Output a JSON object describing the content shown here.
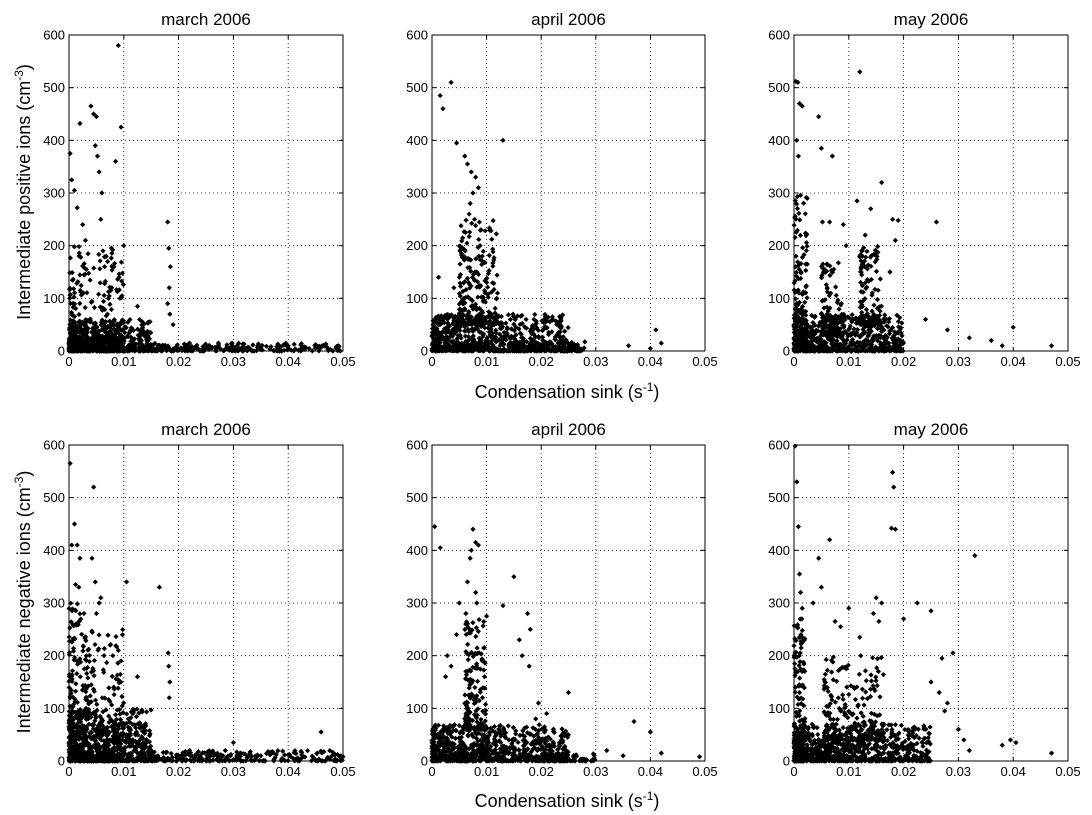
{
  "figure": {
    "xlabel_shared": "Condensation sink (s",
    "xlabel_unit_exp": "-1",
    "xlabel_close": ")",
    "ylabel_top": "Intermediate positive ions (cm",
    "ylabel_bottom": "Intermediate negative ions (cm",
    "ylabel_unit_exp": "-3",
    "ylabel_close": ")"
  },
  "chart_data": [
    {
      "type": "scatter",
      "title": "march 2006",
      "row": "positive",
      "xlim": [
        0,
        0.05
      ],
      "ylim": [
        0,
        600
      ],
      "grid": true,
      "xticks": [
        "0",
        "0.01",
        "0.02",
        "0.03",
        "0.04",
        "0.05"
      ],
      "yticks": [
        "0",
        "100",
        "200",
        "300",
        "400",
        "500",
        "600"
      ],
      "points": [
        [
          0.0002,
          375
        ],
        [
          0.0005,
          325
        ],
        [
          0.001,
          305
        ],
        [
          0.0015,
          272
        ],
        [
          0.002,
          432
        ],
        [
          0.0025,
          240
        ],
        [
          0.003,
          210
        ],
        [
          0.004,
          465
        ],
        [
          0.0045,
          450
        ],
        [
          0.005,
          445
        ],
        [
          0.0048,
          390
        ],
        [
          0.0052,
          370
        ],
        [
          0.0055,
          340
        ],
        [
          0.006,
          300
        ],
        [
          0.0058,
          250
        ],
        [
          0.0062,
          190
        ],
        [
          0.0065,
          160
        ],
        [
          0.0085,
          360
        ],
        [
          0.009,
          580
        ],
        [
          0.0095,
          425
        ],
        [
          0.01,
          200
        ],
        [
          0.0082,
          160
        ],
        [
          0.0078,
          120
        ],
        [
          0.0072,
          100
        ],
        [
          0.0125,
          85
        ],
        [
          0.018,
          245
        ],
        [
          0.0182,
          195
        ],
        [
          0.0185,
          160
        ],
        [
          0.0183,
          120
        ],
        [
          0.018,
          90
        ],
        [
          0.0184,
          70
        ],
        [
          0.019,
          50
        ],
        [
          0.022,
          15
        ],
        [
          0.025,
          12
        ],
        [
          0.03,
          8
        ],
        [
          0.035,
          6
        ],
        [
          0.04,
          5
        ],
        [
          0.045,
          12
        ],
        [
          0.047,
          8
        ],
        [
          0.049,
          5
        ]
      ],
      "clusters": [
        {
          "x": [
            0,
            0.015
          ],
          "y": [
            0,
            60
          ],
          "n": 600
        },
        {
          "x": [
            0,
            0.01
          ],
          "y": [
            0,
            200
          ],
          "n": 250
        },
        {
          "x": [
            0.015,
            0.05
          ],
          "y": [
            0,
            15
          ],
          "n": 220
        }
      ]
    },
    {
      "type": "scatter",
      "title": "april 2006",
      "row": "positive",
      "xlim": [
        0,
        0.05
      ],
      "ylim": [
        0,
        600
      ],
      "grid": true,
      "xticks": [
        "0",
        "0.01",
        "0.02",
        "0.03",
        "0.04",
        "0.05"
      ],
      "yticks": [
        "0",
        "100",
        "200",
        "300",
        "400",
        "500",
        "600"
      ],
      "points": [
        [
          0.0015,
          485
        ],
        [
          0.002,
          460
        ],
        [
          0.0035,
          510
        ],
        [
          0.0045,
          395
        ],
        [
          0.013,
          400
        ],
        [
          0.006,
          370
        ],
        [
          0.0065,
          355
        ],
        [
          0.0072,
          340
        ],
        [
          0.008,
          330
        ],
        [
          0.0085,
          310
        ],
        [
          0.0075,
          300
        ],
        [
          0.007,
          280
        ],
        [
          0.0068,
          260
        ],
        [
          0.0078,
          250
        ],
        [
          0.009,
          230
        ],
        [
          0.0088,
          200
        ],
        [
          0.0092,
          180
        ],
        [
          0.0082,
          150
        ],
        [
          0.005,
          140
        ],
        [
          0.004,
          120
        ],
        [
          0.0012,
          140
        ],
        [
          0.01,
          130
        ],
        [
          0.012,
          110
        ],
        [
          0.041,
          40
        ],
        [
          0.042,
          15
        ],
        [
          0.036,
          10
        ],
        [
          0.04,
          5
        ]
      ],
      "clusters": [
        {
          "x": [
            0,
            0.025
          ],
          "y": [
            0,
            70
          ],
          "n": 700
        },
        {
          "x": [
            0.005,
            0.012
          ],
          "y": [
            50,
            250
          ],
          "n": 220
        },
        {
          "x": [
            0.015,
            0.028
          ],
          "y": [
            0,
            20
          ],
          "n": 120
        }
      ]
    },
    {
      "type": "scatter",
      "title": "may 2006",
      "row": "positive",
      "xlim": [
        0,
        0.05
      ],
      "ylim": [
        0,
        600
      ],
      "grid": true,
      "xticks": [
        "0",
        "0.01",
        "0.02",
        "0.03",
        "0.04",
        "0.05"
      ],
      "yticks": [
        "0",
        "100",
        "200",
        "300",
        "400",
        "500",
        "600"
      ],
      "points": [
        [
          0.0003,
          512
        ],
        [
          0.0007,
          510
        ],
        [
          0.001,
          470
        ],
        [
          0.0015,
          465
        ],
        [
          0.0005,
          400
        ],
        [
          0.0008,
          370
        ],
        [
          0.0045,
          445
        ],
        [
          0.005,
          385
        ],
        [
          0.007,
          370
        ],
        [
          0.012,
          530
        ],
        [
          0.016,
          320
        ],
        [
          0.014,
          270
        ],
        [
          0.0115,
          285
        ],
        [
          0.0065,
          245
        ],
        [
          0.0052,
          245
        ],
        [
          0.009,
          240
        ],
        [
          0.0095,
          200
        ],
        [
          0.013,
          220
        ],
        [
          0.018,
          250
        ],
        [
          0.019,
          248
        ],
        [
          0.026,
          245
        ],
        [
          0.0185,
          210
        ],
        [
          0.0175,
          150
        ],
        [
          0.024,
          60
        ],
        [
          0.028,
          40
        ],
        [
          0.032,
          25
        ],
        [
          0.036,
          20
        ],
        [
          0.038,
          10
        ],
        [
          0.04,
          45
        ],
        [
          0.047,
          10
        ]
      ],
      "clusters": [
        {
          "x": [
            0,
            0.02
          ],
          "y": [
            0,
            70
          ],
          "n": 700
        },
        {
          "x": [
            0,
            0.0025
          ],
          "y": [
            0,
            300
          ],
          "n": 150
        },
        {
          "x": [
            0.012,
            0.016
          ],
          "y": [
            50,
            200
          ],
          "n": 120
        },
        {
          "x": [
            0.005,
            0.009
          ],
          "y": [
            30,
            170
          ],
          "n": 100
        }
      ]
    },
    {
      "type": "scatter",
      "title": "march 2006",
      "row": "negative",
      "xlim": [
        0,
        0.05
      ],
      "ylim": [
        0,
        600
      ],
      "grid": true,
      "xticks": [
        "0",
        "0.01",
        "0.02",
        "0.03",
        "0.04",
        "0.05"
      ],
      "yticks": [
        "0",
        "100",
        "200",
        "300",
        "400",
        "500",
        "600"
      ],
      "points": [
        [
          0.0002,
          565
        ],
        [
          0.0005,
          410
        ],
        [
          0.001,
          450
        ],
        [
          0.0015,
          410
        ],
        [
          0.002,
          385
        ],
        [
          0.0012,
          335
        ],
        [
          0.0018,
          330
        ],
        [
          0.0045,
          520
        ],
        [
          0.0042,
          385
        ],
        [
          0.0048,
          340
        ],
        [
          0.0055,
          300
        ],
        [
          0.005,
          280
        ],
        [
          0.0058,
          310
        ],
        [
          0.0105,
          340
        ],
        [
          0.0165,
          330
        ],
        [
          0.0075,
          220
        ],
        [
          0.008,
          200
        ],
        [
          0.009,
          210
        ],
        [
          0.0095,
          190
        ],
        [
          0.0125,
          160
        ],
        [
          0.0181,
          205
        ],
        [
          0.0182,
          180
        ],
        [
          0.0184,
          150
        ],
        [
          0.0183,
          120
        ],
        [
          0.022,
          20
        ],
        [
          0.03,
          35
        ],
        [
          0.033,
          15
        ],
        [
          0.035,
          10
        ],
        [
          0.04,
          12
        ],
        [
          0.046,
          55
        ],
        [
          0.048,
          10
        ],
        [
          0.05,
          8
        ]
      ],
      "clusters": [
        {
          "x": [
            0,
            0.015
          ],
          "y": [
            0,
            100
          ],
          "n": 700
        },
        {
          "x": [
            0,
            0.003
          ],
          "y": [
            0,
            300
          ],
          "n": 180
        },
        {
          "x": [
            0.003,
            0.01
          ],
          "y": [
            0,
            250
          ],
          "n": 200
        },
        {
          "x": [
            0.015,
            0.05
          ],
          "y": [
            0,
            20
          ],
          "n": 240
        }
      ]
    },
    {
      "type": "scatter",
      "title": "april 2006",
      "row": "negative",
      "xlim": [
        0,
        0.05
      ],
      "ylim": [
        0,
        600
      ],
      "grid": true,
      "xticks": [
        "0",
        "0.01",
        "0.02",
        "0.03",
        "0.04",
        "0.05"
      ],
      "yticks": [
        "0",
        "100",
        "200",
        "300",
        "400",
        "500",
        "600"
      ],
      "points": [
        [
          0.0005,
          445
        ],
        [
          0.0015,
          405
        ],
        [
          0.0075,
          440
        ],
        [
          0.008,
          415
        ],
        [
          0.0085,
          410
        ],
        [
          0.0072,
          400
        ],
        [
          0.007,
          385
        ],
        [
          0.0065,
          340
        ],
        [
          0.008,
          320
        ],
        [
          0.0082,
          300
        ],
        [
          0.0062,
          280
        ],
        [
          0.005,
          300
        ],
        [
          0.0045,
          240
        ],
        [
          0.0028,
          200
        ],
        [
          0.0035,
          180
        ],
        [
          0.0025,
          160
        ],
        [
          0.015,
          350
        ],
        [
          0.013,
          295
        ],
        [
          0.0175,
          280
        ],
        [
          0.018,
          250
        ],
        [
          0.016,
          230
        ],
        [
          0.0165,
          200
        ],
        [
          0.0178,
          180
        ],
        [
          0.0195,
          110
        ],
        [
          0.021,
          90
        ],
        [
          0.019,
          80
        ],
        [
          0.025,
          130
        ],
        [
          0.032,
          20
        ],
        [
          0.035,
          10
        ],
        [
          0.037,
          75
        ],
        [
          0.04,
          55
        ],
        [
          0.042,
          15
        ],
        [
          0.049,
          8
        ]
      ],
      "clusters": [
        {
          "x": [
            0,
            0.025
          ],
          "y": [
            0,
            70
          ],
          "n": 750
        },
        {
          "x": [
            0.006,
            0.01
          ],
          "y": [
            60,
            280
          ],
          "n": 160
        },
        {
          "x": [
            0.02,
            0.03
          ],
          "y": [
            0,
            15
          ],
          "n": 80
        }
      ]
    },
    {
      "type": "scatter",
      "title": "may 2006",
      "row": "negative",
      "xlim": [
        0,
        0.05
      ],
      "ylim": [
        0,
        600
      ],
      "grid": true,
      "xticks": [
        "0",
        "0.01",
        "0.02",
        "0.03",
        "0.04",
        "0.05"
      ],
      "yticks": [
        "0",
        "100",
        "200",
        "300",
        "400",
        "500",
        "600"
      ],
      "points": [
        [
          0.0002,
          598
        ],
        [
          0.0005,
          530
        ],
        [
          0.0008,
          445
        ],
        [
          0.001,
          355
        ],
        [
          0.0012,
          320
        ],
        [
          0.0015,
          290
        ],
        [
          0.018,
          548
        ],
        [
          0.0182,
          520
        ],
        [
          0.0178,
          442
        ],
        [
          0.0185,
          440
        ],
        [
          0.033,
          390
        ],
        [
          0.0045,
          385
        ],
        [
          0.005,
          330
        ],
        [
          0.0065,
          420
        ],
        [
          0.0035,
          300
        ],
        [
          0.01,
          290
        ],
        [
          0.0075,
          265
        ],
        [
          0.0085,
          255
        ],
        [
          0.015,
          310
        ],
        [
          0.016,
          300
        ],
        [
          0.0145,
          280
        ],
        [
          0.0225,
          300
        ],
        [
          0.025,
          285
        ],
        [
          0.02,
          270
        ],
        [
          0.0155,
          265
        ],
        [
          0.012,
          235
        ],
        [
          0.027,
          195
        ],
        [
          0.029,
          205
        ],
        [
          0.025,
          150
        ],
        [
          0.0265,
          130
        ],
        [
          0.028,
          110
        ],
        [
          0.0275,
          95
        ],
        [
          0.03,
          60
        ],
        [
          0.031,
          40
        ],
        [
          0.032,
          20
        ],
        [
          0.038,
          30
        ],
        [
          0.0395,
          40
        ],
        [
          0.0405,
          35
        ],
        [
          0.047,
          15
        ]
      ],
      "clusters": [
        {
          "x": [
            0,
            0.025
          ],
          "y": [
            0,
            70
          ],
          "n": 750
        },
        {
          "x": [
            0,
            0.002
          ],
          "y": [
            0,
            280
          ],
          "n": 150
        },
        {
          "x": [
            0.0055,
            0.0165
          ],
          "y": [
            40,
            200
          ],
          "n": 220
        }
      ]
    }
  ]
}
